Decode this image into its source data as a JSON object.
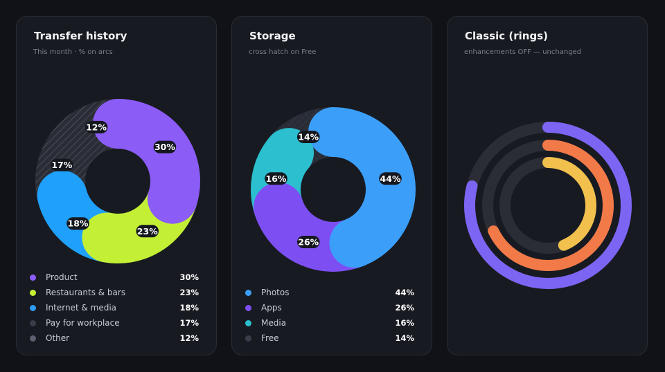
{
  "cards": [
    {
      "title": "Transfer history",
      "subtitle": "This month · % on arcs",
      "legend": [
        {
          "label": "Product",
          "value": "30%",
          "color": "#8b5cf6"
        },
        {
          "label": "Restaurants & bars",
          "value": "23%",
          "color": "#c3f035"
        },
        {
          "label": "Internet & media",
          "value": "18%",
          "color": "#2f9cf4"
        },
        {
          "label": "Pay for workplace",
          "value": "17%",
          "color": "#3a3d4a"
        },
        {
          "label": "Other",
          "value": "12%",
          "color": "#5d6070"
        }
      ]
    },
    {
      "title": "Storage",
      "subtitle": "cross hatch on Free",
      "legend": [
        {
          "label": "Photos",
          "value": "44%",
          "color": "#3b9ffa"
        },
        {
          "label": "Apps",
          "value": "26%",
          "color": "#7d4ff2"
        },
        {
          "label": "Media",
          "value": "16%",
          "color": "#2bbfcf"
        },
        {
          "label": "Free",
          "value": "14%",
          "color": "#3a3d4a"
        }
      ]
    },
    {
      "title": "Classic (rings)",
      "subtitle": "enhancements OFF — unchanged"
    }
  ],
  "chart_data": [
    {
      "type": "pie",
      "title": "Transfer history",
      "categories": [
        "Product",
        "Restaurants & bars",
        "Internet & media",
        "Pay for workplace",
        "Other"
      ],
      "values": [
        30,
        23,
        18,
        17,
        12
      ],
      "labels": [
        "30%",
        "23%",
        "18%",
        "17%",
        "12%"
      ],
      "colors": [
        "#8b5cf6",
        "#c3f035",
        "#1ea0fb",
        "#2b2d36",
        "#363945"
      ],
      "hatched": [
        false,
        false,
        false,
        true,
        true
      ],
      "legend_position": "bottom"
    },
    {
      "type": "pie",
      "title": "Storage",
      "categories": [
        "Photos",
        "Apps",
        "Media",
        "Free"
      ],
      "values": [
        44,
        26,
        16,
        14
      ],
      "labels": [
        "44%",
        "26%",
        "16%",
        "14%"
      ],
      "colors": [
        "#3b9ffa",
        "#7d4ff2",
        "#2bbfcf",
        "#2b2d36"
      ],
      "hatched": [
        false,
        false,
        false,
        true
      ],
      "legend_position": "bottom"
    },
    {
      "type": "radial_bar",
      "title": "Classic (rings)",
      "series": [
        {
          "values": [
            0.79
          ],
          "color": "#7c65f3"
        },
        {
          "values": [
            0.68
          ],
          "color": "#f27a48"
        },
        {
          "values": [
            0.44
          ],
          "color": "#f2c04d"
        }
      ],
      "track_color": "#2b2d36",
      "max": 1
    }
  ]
}
